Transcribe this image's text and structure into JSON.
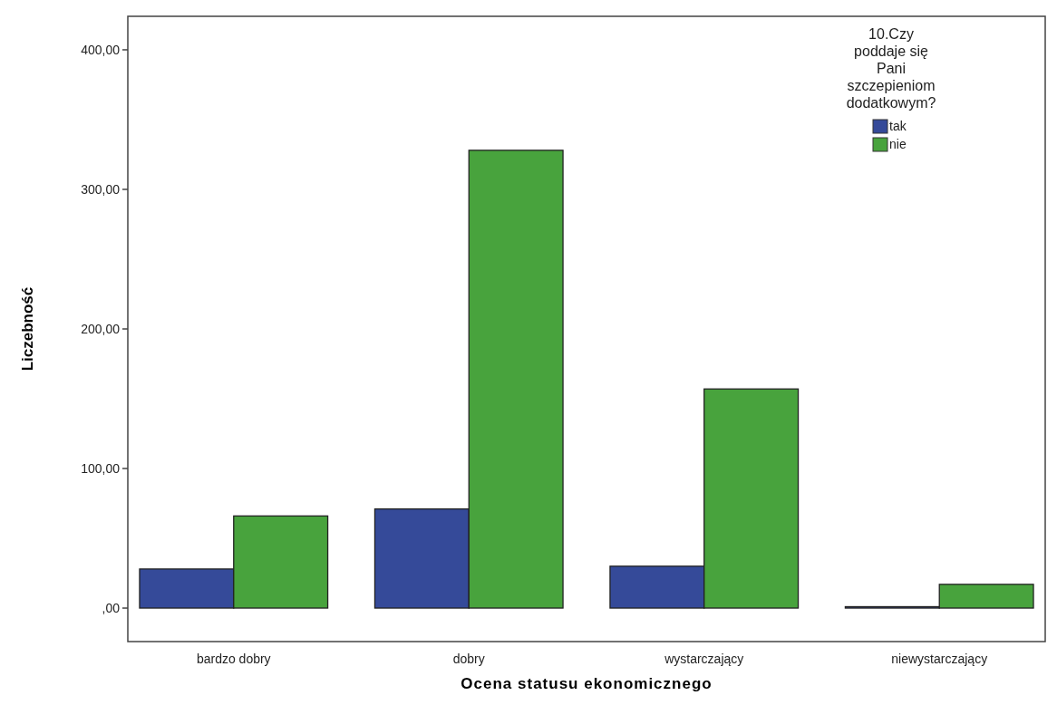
{
  "chart_data": {
    "type": "bar",
    "xlabel": "Ocena statusu ekonomicznego",
    "ylabel": "Liczebność",
    "legend_title": "10.Czy poddaje się Pani szczepieniom dodatkowym?",
    "categories": [
      "bardzo dobry",
      "dobry",
      "wystarczający",
      "niewystarczający"
    ],
    "series": [
      {
        "name": "tak",
        "color": "#354a99",
        "values": [
          28,
          71,
          30,
          1
        ]
      },
      {
        "name": "nie",
        "color": "#48a33d",
        "values": [
          66,
          328,
          157,
          17
        ]
      }
    ],
    "ylim": [
      -24,
      424
    ],
    "yticks": [
      {
        "value": 0,
        "label": ",00"
      },
      {
        "value": 100,
        "label": "100,00"
      },
      {
        "value": 200,
        "label": "200,00"
      },
      {
        "value": 300,
        "label": "300,00"
      },
      {
        "value": 400,
        "label": "400,00"
      }
    ],
    "grid": false,
    "legend": "top right"
  }
}
